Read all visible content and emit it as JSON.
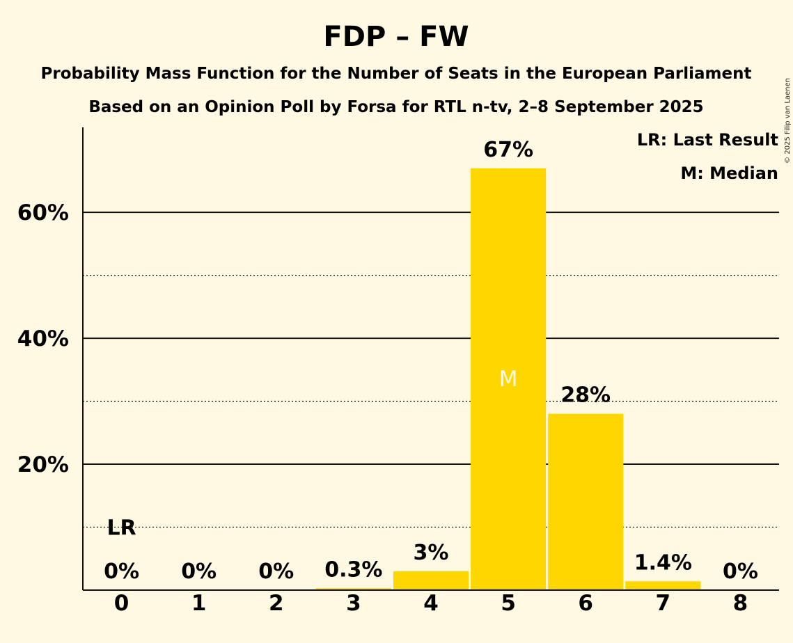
{
  "title": "FDP – FW",
  "subtitle1": "Probability Mass Function for the Number of Seats in the European Parliament",
  "subtitle2": "Based on an Opinion Poll by Forsa for RTL n-tv, 2–8 September 2025",
  "copyright": "© 2025 Filip van Laenen",
  "legend": {
    "last_result": "LR: Last Result",
    "median": "M: Median"
  },
  "markers": {
    "last_result": "LR",
    "median": "M"
  },
  "colors": {
    "bar": "#FFD700",
    "background": "#FFF8E2"
  },
  "chart_data": {
    "type": "bar",
    "categories": [
      "0",
      "1",
      "2",
      "3",
      "4",
      "5",
      "6",
      "7",
      "8"
    ],
    "values": [
      0,
      0,
      0,
      0.3,
      3,
      67,
      28,
      1.4,
      0
    ],
    "data_labels": [
      "0%",
      "0%",
      "0%",
      "0.3%",
      "3%",
      "67%",
      "28%",
      "1.4%",
      "0%"
    ],
    "yticks": [
      {
        "value": 20,
        "label": "20%"
      },
      {
        "value": 40,
        "label": "40%"
      },
      {
        "value": 60,
        "label": "60%"
      }
    ],
    "dotted_gridlines": [
      10,
      30,
      50
    ],
    "ylim": [
      0,
      73.5
    ],
    "last_result_seat": 0,
    "median_seat": 5,
    "legend_position": "top-right"
  }
}
